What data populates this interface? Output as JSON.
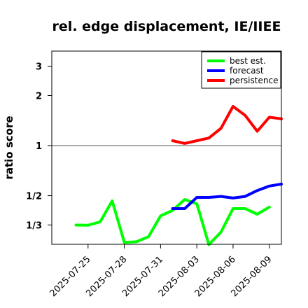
{
  "chart_data": {
    "type": "line",
    "title": "rel. edge displacement, IE/IIEE",
    "ylabel": "ratio score",
    "xlabel": "",
    "x_ticks": [
      {
        "label": "2025-07-25",
        "color": "#000000"
      },
      {
        "label": "2025-07-28",
        "color": "#000000"
      },
      {
        "label": "2025-07-31",
        "color": "#228B22"
      },
      {
        "label": "2025-08-03",
        "color": "#000000"
      },
      {
        "label": "2025-08-06",
        "color": "#000000"
      },
      {
        "label": "2025-08-09",
        "color": "#000000"
      }
    ],
    "x_range": [
      "2025-07-22",
      "2025-08-10"
    ],
    "y_scale": "log",
    "y_ticks": [
      {
        "value": 0.3333,
        "label": "1/3"
      },
      {
        "value": 0.5,
        "label": "1/2"
      },
      {
        "value": 1,
        "label": "1"
      },
      {
        "value": 2,
        "label": "2"
      },
      {
        "value": 3,
        "label": "3"
      }
    ],
    "ylim": [
      0.255,
      3.7
    ],
    "reference_line": 1,
    "legend_position": "top-right",
    "series": [
      {
        "name": "best est.",
        "color": "#00ff00",
        "points": [
          [
            "2025-07-24",
            0.333
          ],
          [
            "2025-07-25",
            0.332
          ],
          [
            "2025-07-26",
            0.348
          ],
          [
            "2025-07-27",
            0.465
          ],
          [
            "2025-07-28",
            0.262
          ],
          [
            "2025-07-29",
            0.264
          ],
          [
            "2025-07-30",
            0.283
          ],
          [
            "2025-07-31",
            0.378
          ],
          [
            "2025-08-01",
            0.408
          ],
          [
            "2025-08-02",
            0.474
          ],
          [
            "2025-08-03",
            0.447
          ],
          [
            "2025-08-04",
            0.254
          ],
          [
            "2025-08-05",
            0.302
          ],
          [
            "2025-08-06",
            0.418
          ],
          [
            "2025-08-07",
            0.418
          ],
          [
            "2025-08-08",
            0.387
          ],
          [
            "2025-08-09",
            0.427
          ]
        ]
      },
      {
        "name": "forecast",
        "color": "#0000ff",
        "points": [
          [
            "2025-08-01",
            0.418
          ],
          [
            "2025-08-02",
            0.418
          ],
          [
            "2025-08-03",
            0.488
          ],
          [
            "2025-08-04",
            0.488
          ],
          [
            "2025-08-05",
            0.495
          ],
          [
            "2025-08-06",
            0.484
          ],
          [
            "2025-08-07",
            0.495
          ],
          [
            "2025-08-08",
            0.537
          ],
          [
            "2025-08-09",
            0.571
          ],
          [
            "2025-08-10",
            0.587
          ]
        ]
      },
      {
        "name": "persistence",
        "color": "#ff0000",
        "points": [
          [
            "2025-08-01",
            1.07
          ],
          [
            "2025-08-02",
            1.03
          ],
          [
            "2025-08-03",
            1.07
          ],
          [
            "2025-08-04",
            1.11
          ],
          [
            "2025-08-05",
            1.27
          ],
          [
            "2025-08-06",
            1.72
          ],
          [
            "2025-08-07",
            1.52
          ],
          [
            "2025-08-08",
            1.22
          ],
          [
            "2025-08-09",
            1.48
          ],
          [
            "2025-08-10",
            1.45
          ]
        ]
      }
    ]
  }
}
